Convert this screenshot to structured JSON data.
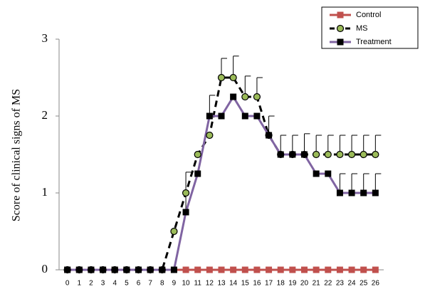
{
  "chart_data": {
    "type": "line",
    "y_label": "Score of clinical signs of MS",
    "x": [
      0,
      1,
      2,
      3,
      4,
      5,
      6,
      7,
      8,
      9,
      10,
      11,
      12,
      13,
      14,
      15,
      16,
      17,
      18,
      19,
      20,
      21,
      22,
      23,
      24,
      25,
      26
    ],
    "xlim": [
      -0.7,
      26.7
    ],
    "xticks": [
      0,
      1,
      2,
      3,
      4,
      5,
      6,
      7,
      8,
      9,
      10,
      11,
      12,
      13,
      14,
      15,
      16,
      17,
      18,
      19,
      20,
      21,
      22,
      23,
      24,
      25,
      26
    ],
    "ylim": [
      0,
      3
    ],
    "yticks": [
      0,
      1,
      2,
      3
    ],
    "legend": "top-right",
    "series": [
      {
        "name": "Control",
        "color": "#c0504d",
        "marker": "square",
        "dash": false,
        "values": [
          0,
          0,
          0,
          0,
          0,
          0,
          0,
          0,
          0,
          0,
          0,
          0,
          0,
          0,
          0,
          0,
          0,
          0,
          0,
          0,
          0,
          0,
          0,
          0,
          0,
          0,
          0
        ],
        "errors": [
          null,
          null,
          null,
          null,
          null,
          null,
          null,
          null,
          null,
          null,
          null,
          null,
          null,
          null,
          null,
          null,
          null,
          null,
          null,
          null,
          null,
          null,
          null,
          null,
          null,
          null,
          null
        ]
      },
      {
        "name": "MS",
        "color": "#000000",
        "marker_color": "#9bbb59",
        "marker": "circle",
        "dash": true,
        "values": [
          0,
          0,
          0,
          0,
          0,
          0,
          0,
          0,
          0,
          0.5,
          1,
          1.5,
          1.75,
          2.5,
          2.5,
          2.25,
          2.25,
          1.75,
          1.5,
          1.5,
          1.5,
          1.5,
          1.5,
          1.5,
          1.5,
          1.5,
          1.5
        ],
        "errors": [
          null,
          null,
          null,
          null,
          null,
          null,
          null,
          null,
          null,
          null,
          null,
          null,
          null,
          0.25,
          0.28,
          0.27,
          0.25,
          0.25,
          0.25,
          0.25,
          0.27,
          0.25,
          0.25,
          0.25,
          0.25,
          0.25,
          0.25
        ]
      },
      {
        "name": "Treatment",
        "color": "#8064a2",
        "marker_color": "#000000",
        "marker": "square",
        "dash": false,
        "values": [
          0,
          0,
          0,
          0,
          0,
          0,
          0,
          0,
          0,
          0,
          0.75,
          1.25,
          2,
          2,
          2.25,
          2,
          2,
          1.75,
          1.5,
          1.5,
          1.5,
          1.25,
          1.25,
          1,
          1,
          1,
          1
        ],
        "errors": [
          null,
          null,
          null,
          null,
          null,
          null,
          null,
          null,
          null,
          null,
          0.52,
          null,
          0.27,
          null,
          null,
          null,
          null,
          null,
          null,
          null,
          null,
          null,
          null,
          0.25,
          0.25,
          0.25,
          0.25
        ]
      }
    ]
  }
}
